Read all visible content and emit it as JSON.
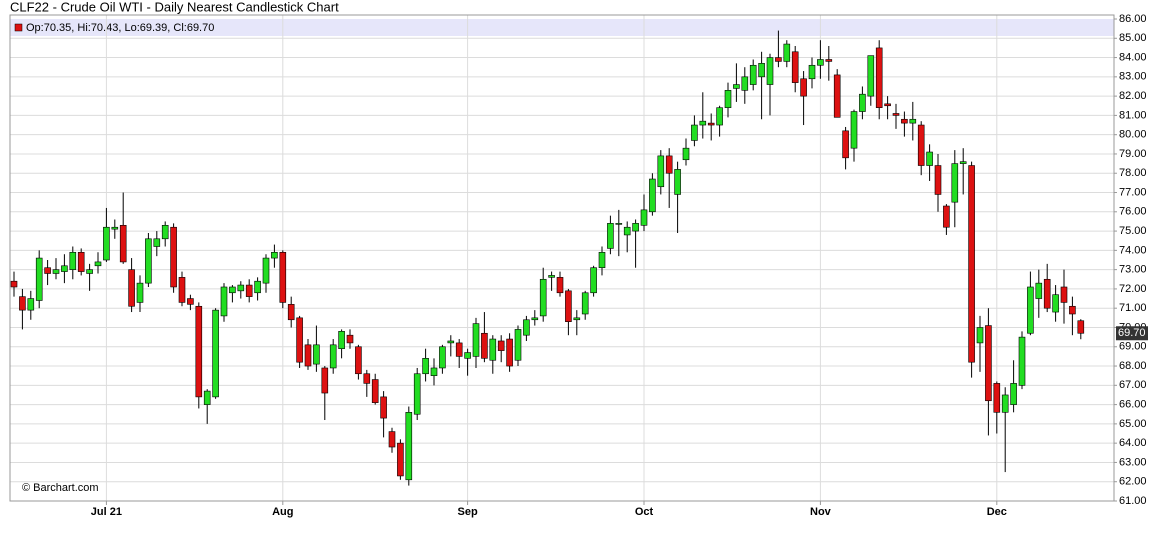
{
  "chart_data": {
    "type": "candlestick",
    "title": "CLF22 - Crude Oil WTI - Daily Nearest Candlestick Chart",
    "legend_text": "Op:70.35, Hi:70.43, Lo:69.39, Cl:69.70",
    "last_price_label": "69.70",
    "watermark": "© Barchart.com",
    "up_color": "#22dd22",
    "down_color": "#dd1111",
    "categories": [
      null,
      null,
      null,
      null,
      null,
      null,
      null,
      null,
      null,
      null,
      null,
      "Jul 21",
      null,
      null,
      null,
      null,
      null,
      null,
      null,
      null,
      null,
      null,
      null,
      null,
      null,
      null,
      null,
      null,
      null,
      null,
      null,
      null,
      "Aug",
      null,
      null,
      null,
      null,
      null,
      null,
      null,
      null,
      null,
      null,
      null,
      null,
      null,
      null,
      null,
      null,
      null,
      null,
      null,
      null,
      null,
      "Sep",
      null,
      null,
      null,
      null,
      null,
      null,
      null,
      null,
      null,
      null,
      null,
      null,
      null,
      null,
      null,
      null,
      null,
      null,
      null,
      null,
      "Oct",
      null,
      null,
      null,
      null,
      null,
      null,
      null,
      null,
      null,
      null,
      null,
      null,
      null,
      null,
      null,
      null,
      null,
      null,
      null,
      null,
      "Nov",
      null,
      null,
      null,
      null,
      null,
      null,
      null,
      null,
      null,
      null,
      null,
      null,
      null,
      null,
      null,
      null,
      null,
      null,
      null,
      null,
      "Dec",
      null,
      null,
      null,
      null,
      null,
      null,
      null,
      null,
      null,
      null
    ],
    "open": [
      72.4,
      71.6,
      70.9,
      71.4,
      73.1,
      72.8,
      72.9,
      73.0,
      73.9,
      72.8,
      73.2,
      73.5,
      75.1,
      75.3,
      73.0,
      71.3,
      72.3,
      74.2,
      74.6,
      75.2,
      72.6,
      71.5,
      71.1,
      66.0,
      66.4,
      70.6,
      71.8,
      71.9,
      72.2,
      71.8,
      72.3,
      73.6,
      73.9,
      71.2,
      70.5,
      69.1,
      68.1,
      67.9,
      67.9,
      68.9,
      69.6,
      69.0,
      67.6,
      67.3,
      66.4,
      64.6,
      64.0,
      62.1,
      65.5,
      67.6,
      67.5,
      67.9,
      69.2,
      69.2,
      68.4,
      68.5,
      69.7,
      68.3,
      69.3,
      69.4,
      68.3,
      69.6,
      70.4,
      70.6,
      72.6,
      72.6,
      71.9,
      70.4,
      70.7,
      71.8,
      73.1,
      74.1,
      75.4,
      74.8,
      75.0,
      75.3,
      76.0,
      77.3,
      78.9,
      76.9,
      78.7,
      79.7,
      80.5,
      80.6,
      80.5,
      81.4,
      82.4,
      82.3,
      82.6,
      83.0,
      82.6,
      84.0,
      83.8,
      84.3,
      82.9,
      82.9,
      83.6,
      83.9,
      83.1,
      80.2,
      79.3,
      81.2,
      82.0,
      84.5,
      81.6,
      81.1,
      80.8,
      80.6,
      80.5,
      78.4,
      78.4,
      76.3,
      76.5,
      78.5,
      78.4,
      69.2,
      70.1,
      67.1,
      65.6,
      66.0,
      67.0,
      69.7,
      71.5,
      72.5,
      70.8,
      72.1,
      71.1,
      70.35
    ],
    "high": [
      72.9,
      72.0,
      71.9,
      74.0,
      73.5,
      73.6,
      73.8,
      74.2,
      74.1,
      73.3,
      73.9,
      76.2,
      75.6,
      77.0,
      73.6,
      72.7,
      74.9,
      75.0,
      75.5,
      75.4,
      72.9,
      71.7,
      71.3,
      66.8,
      71.0,
      72.3,
      72.2,
      72.4,
      72.5,
      72.6,
      73.8,
      74.3,
      74.0,
      71.6,
      70.6,
      69.4,
      70.1,
      68.0,
      69.4,
      69.9,
      69.9,
      69.1,
      67.8,
      67.6,
      66.7,
      64.8,
      64.2,
      65.9,
      67.9,
      68.9,
      68.4,
      69.1,
      69.6,
      69.4,
      68.9,
      70.5,
      70.8,
      69.6,
      69.6,
      69.7,
      70.1,
      70.6,
      70.9,
      73.1,
      72.9,
      72.9,
      72.0,
      70.9,
      71.9,
      73.2,
      74.2,
      75.8,
      76.1,
      75.5,
      75.6,
      76.9,
      78.0,
      79.2,
      79.3,
      78.6,
      79.8,
      81.0,
      82.2,
      81.1,
      81.5,
      82.7,
      83.7,
      83.5,
      83.9,
      84.3,
      84.2,
      85.4,
      84.9,
      84.6,
      83.3,
      84.0,
      84.9,
      84.6,
      83.4,
      80.4,
      81.3,
      82.5,
      84.1,
      84.9,
      82.0,
      81.6,
      81.2,
      81.7,
      80.7,
      79.5,
      79.0,
      76.4,
      79.2,
      79.3,
      78.6,
      70.6,
      71.0,
      67.2,
      66.9,
      68.3,
      69.8,
      72.9,
      73.0,
      73.3,
      72.2,
      73.0,
      71.6,
      70.43
    ],
    "low": [
      71.6,
      69.9,
      70.4,
      71.0,
      72.2,
      72.5,
      72.3,
      72.5,
      72.7,
      71.9,
      72.8,
      73.4,
      74.6,
      73.3,
      70.8,
      70.8,
      72.1,
      73.7,
      74.2,
      71.8,
      71.1,
      70.9,
      65.8,
      65.0,
      66.3,
      70.3,
      71.3,
      71.5,
      71.3,
      71.4,
      71.8,
      73.1,
      71.0,
      70.0,
      67.9,
      67.8,
      67.7,
      65.2,
      67.6,
      68.4,
      68.9,
      67.3,
      66.4,
      66.0,
      64.3,
      63.5,
      62.1,
      61.8,
      65.2,
      67.2,
      67.0,
      67.6,
      68.5,
      67.9,
      67.5,
      67.9,
      68.2,
      67.6,
      68.2,
      67.7,
      68.0,
      69.3,
      70.1,
      70.3,
      71.9,
      71.6,
      69.6,
      69.6,
      70.4,
      71.6,
      72.7,
      73.8,
      73.7,
      73.9,
      73.1,
      75.0,
      75.8,
      76.9,
      76.2,
      74.9,
      78.4,
      79.4,
      79.8,
      79.7,
      79.9,
      80.9,
      81.7,
      81.6,
      82.3,
      80.8,
      81.0,
      83.5,
      83.5,
      82.2,
      80.5,
      82.4,
      82.9,
      82.8,
      80.9,
      78.2,
      78.6,
      80.8,
      81.5,
      80.8,
      80.8,
      80.3,
      79.9,
      79.7,
      77.9,
      77.6,
      76.0,
      74.8,
      75.2,
      76.9,
      67.4,
      67.7,
      64.4,
      64.5,
      62.5,
      65.6,
      66.8,
      69.6,
      70.5,
      70.8,
      70.3,
      70.2,
      69.6,
      69.39
    ],
    "close": [
      72.1,
      70.9,
      71.5,
      73.6,
      72.8,
      73.0,
      73.2,
      73.9,
      72.9,
      73.0,
      73.4,
      75.2,
      75.2,
      73.4,
      71.1,
      72.3,
      74.6,
      74.6,
      75.3,
      72.1,
      71.3,
      71.2,
      66.4,
      66.7,
      70.9,
      72.1,
      72.1,
      72.2,
      71.6,
      72.4,
      73.6,
      73.9,
      71.3,
      70.4,
      68.2,
      68.0,
      69.1,
      66.6,
      69.1,
      69.8,
      69.2,
      67.6,
      67.1,
      66.1,
      65.3,
      63.8,
      62.3,
      65.6,
      67.6,
      68.4,
      67.9,
      69.0,
      69.3,
      68.5,
      68.7,
      70.2,
      68.4,
      69.4,
      68.8,
      68.0,
      69.9,
      70.4,
      70.5,
      72.5,
      72.7,
      71.8,
      70.3,
      70.5,
      71.8,
      73.1,
      73.9,
      75.4,
      75.4,
      75.2,
      75.4,
      76.1,
      77.7,
      78.9,
      78.0,
      78.2,
      79.3,
      80.5,
      80.7,
      80.5,
      81.4,
      82.3,
      82.6,
      83.0,
      83.6,
      83.7,
      84.0,
      83.8,
      84.7,
      82.7,
      82.0,
      83.6,
      83.9,
      83.8,
      80.9,
      78.8,
      81.2,
      82.1,
      84.1,
      81.4,
      81.5,
      81.0,
      80.6,
      80.8,
      78.4,
      79.1,
      76.9,
      75.2,
      78.5,
      78.6,
      68.2,
      70.0,
      66.2,
      65.6,
      66.5,
      67.1,
      69.5,
      72.1,
      72.3,
      71.0,
      71.7,
      71.3,
      70.7,
      69.7
    ],
    "ylim": [
      61,
      86
    ],
    "yticks": [
      {
        "value": 61,
        "label": "61.00"
      },
      {
        "value": 62,
        "label": "62.00"
      },
      {
        "value": 63,
        "label": "63.00"
      },
      {
        "value": 64,
        "label": "64.00"
      },
      {
        "value": 65,
        "label": "65.00"
      },
      {
        "value": 66,
        "label": "66.00"
      },
      {
        "value": 67,
        "label": "67.00"
      },
      {
        "value": 68,
        "label": "68.00"
      },
      {
        "value": 69,
        "label": "69.00"
      },
      {
        "value": 70,
        "label": "70.00"
      },
      {
        "value": 71,
        "label": "71.00"
      },
      {
        "value": 72,
        "label": "72.00"
      },
      {
        "value": 73,
        "label": "73.00"
      },
      {
        "value": 74,
        "label": "74.00"
      },
      {
        "value": 75,
        "label": "75.00"
      },
      {
        "value": 76,
        "label": "76.00"
      },
      {
        "value": 77,
        "label": "77.00"
      },
      {
        "value": 78,
        "label": "78.00"
      },
      {
        "value": 79,
        "label": "79.00"
      },
      {
        "value": 80,
        "label": "80.00"
      },
      {
        "value": 81,
        "label": "81.00"
      },
      {
        "value": 82,
        "label": "82.00"
      },
      {
        "value": 83,
        "label": "83.00"
      },
      {
        "value": 84,
        "label": "84.00"
      },
      {
        "value": 85,
        "label": "85.00"
      },
      {
        "value": 86,
        "label": "86.00"
      }
    ],
    "grid": true
  }
}
